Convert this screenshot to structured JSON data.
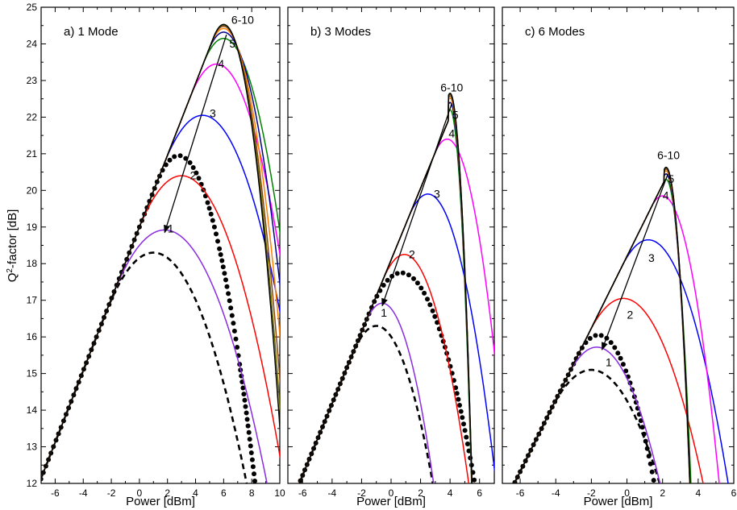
{
  "figure": {
    "ylabel_prefix": "Q",
    "ylabel_sup": "2",
    "ylabel_rest": "-factor [dB]"
  },
  "chart_data": [
    {
      "type": "line",
      "panel_label": "a)   1 Mode",
      "xlabel": "Power [dBm]",
      "xlim": [
        -7,
        10
      ],
      "ylim": [
        12,
        25
      ],
      "xticks": [
        -6,
        -4,
        -2,
        0,
        2,
        4,
        6,
        8,
        10
      ],
      "yticks": [
        12,
        13,
        14,
        15,
        16,
        17,
        18,
        19,
        20,
        21,
        22,
        23,
        24,
        25
      ],
      "grid": false,
      "linear_slope_db_per_db": 0.98,
      "linear_intercept_db": 19.0,
      "series": [
        {
          "label": "1",
          "color": "#8a2be2",
          "style": "solid",
          "peak_x": 1.8,
          "peak_y": 18.92
        },
        {
          "label": "2",
          "color": "#ff0000",
          "style": "solid",
          "peak_x": 3.0,
          "peak_y": 20.4
        },
        {
          "label": "3",
          "color": "#0000ff",
          "style": "solid",
          "peak_x": 4.5,
          "peak_y": 22.05
        },
        {
          "label": "4",
          "color": "#ff00ff",
          "style": "solid",
          "peak_x": 5.5,
          "peak_y": 23.45
        },
        {
          "label": "5",
          "color": "#008000",
          "style": "solid",
          "peak_x": 6.0,
          "peak_y": 24.15
        },
        {
          "label": "",
          "color": "#00008b",
          "style": "solid",
          "peak_x": 6.0,
          "peak_y": 24.32
        },
        {
          "label": "",
          "color": "#ff7f00",
          "style": "solid",
          "peak_x": 6.0,
          "peak_y": 24.42
        },
        {
          "label": "",
          "color": "#8b4513",
          "style": "solid",
          "peak_x": 6.0,
          "peak_y": 24.48
        },
        {
          "label": "",
          "color": "#6b6b00",
          "style": "solid",
          "peak_x": 6.0,
          "peak_y": 24.51
        },
        {
          "label": "",
          "color": "#000000",
          "style": "solid",
          "peak_x": 6.0,
          "peak_y": 24.53
        },
        {
          "label": "",
          "color": "#000000",
          "style": "dashed",
          "peak_x": 1.0,
          "peak_y": 18.3
        },
        {
          "label": "",
          "color": "#000000",
          "style": "dotted",
          "peak_x": 2.8,
          "peak_y": 20.95
        }
      ],
      "annotations": [
        {
          "text": "1",
          "x": 2.0,
          "y": 18.85
        },
        {
          "text": "2",
          "x": 3.6,
          "y": 20.3
        },
        {
          "text": "3",
          "x": 5.0,
          "y": 22.0
        },
        {
          "text": "4",
          "x": 5.6,
          "y": 23.35
        },
        {
          "text": "5",
          "x": 6.4,
          "y": 23.9
        },
        {
          "text": "6-10",
          "x": 6.55,
          "y": 24.55
        }
      ],
      "arrow": {
        "from_x": 6.2,
        "from_y": 24.25,
        "to_x": 1.8,
        "to_y": 18.85
      }
    },
    {
      "type": "line",
      "panel_label": "b)   3 Modes",
      "xlabel": "Power [dBm]",
      "xlim": [
        -7,
        7
      ],
      "ylim": [
        12,
        25
      ],
      "xticks": [
        -6,
        -4,
        -2,
        0,
        2,
        4,
        6
      ],
      "yticks": [
        12,
        13,
        14,
        15,
        16,
        17,
        18,
        19,
        20,
        21,
        22,
        23,
        24,
        25
      ],
      "grid": false,
      "linear_slope_db_per_db": 0.98,
      "linear_intercept_db": 18.1,
      "series": [
        {
          "label": "1",
          "color": "#8a2be2",
          "style": "solid",
          "peak_x": -0.6,
          "peak_y": 16.92
        },
        {
          "label": "2",
          "color": "#ff0000",
          "style": "solid",
          "peak_x": 0.9,
          "peak_y": 18.25
        },
        {
          "label": "3",
          "color": "#0000ff",
          "style": "solid",
          "peak_x": 2.5,
          "peak_y": 19.9
        },
        {
          "label": "4",
          "color": "#ff00ff",
          "style": "solid",
          "peak_x": 3.8,
          "peak_y": 21.4
        },
        {
          "label": "5",
          "color": "#008000",
          "style": "solid",
          "peak_x": 4.0,
          "peak_y": 22.2
        },
        {
          "label": "",
          "color": "#00008b",
          "style": "solid",
          "peak_x": 4.0,
          "peak_y": 22.4
        },
        {
          "label": "",
          "color": "#ff7f00",
          "style": "solid",
          "peak_x": 4.0,
          "peak_y": 22.52
        },
        {
          "label": "",
          "color": "#8b4513",
          "style": "solid",
          "peak_x": 4.0,
          "peak_y": 22.58
        },
        {
          "label": "",
          "color": "#6b6b00",
          "style": "solid",
          "peak_x": 4.0,
          "peak_y": 22.62
        },
        {
          "label": "",
          "color": "#000000",
          "style": "solid",
          "peak_x": 4.0,
          "peak_y": 22.65
        },
        {
          "label": "",
          "color": "#000000",
          "style": "dashed",
          "peak_x": -1.0,
          "peak_y": 16.3
        },
        {
          "label": "",
          "color": "#000000",
          "style": "dotted",
          "peak_x": 0.7,
          "peak_y": 17.75
        }
      ],
      "annotations": [
        {
          "text": "1",
          "x": -0.7,
          "y": 16.55
        },
        {
          "text": "2",
          "x": 1.2,
          "y": 18.15
        },
        {
          "text": "3",
          "x": 2.9,
          "y": 19.8
        },
        {
          "text": "4",
          "x": 3.9,
          "y": 21.45
        },
        {
          "text": "5",
          "x": 4.15,
          "y": 21.95
        },
        {
          "text": "6-10",
          "x": 3.35,
          "y": 22.7
        }
      ],
      "arrow": {
        "from_x": 4.1,
        "from_y": 22.35,
        "to_x": -0.6,
        "to_y": 16.85
      }
    },
    {
      "type": "line",
      "panel_label": "c)   6 Modes",
      "xlabel": "Power [dBm]",
      "xlim": [
        -7,
        6
      ],
      "ylim": [
        12,
        25
      ],
      "xticks": [
        -6,
        -4,
        -2,
        0,
        2,
        4,
        6
      ],
      "yticks": [
        12,
        13,
        14,
        15,
        16,
        17,
        18,
        19,
        20,
        21,
        22,
        23,
        24,
        25
      ],
      "grid": false,
      "linear_slope_db_per_db": 0.98,
      "linear_intercept_db": 18.2,
      "series": [
        {
          "label": "1",
          "color": "#8a2be2",
          "style": "solid",
          "peak_x": -1.7,
          "peak_y": 15.72
        },
        {
          "label": "2",
          "color": "#ff0000",
          "style": "solid",
          "peak_x": -0.2,
          "peak_y": 17.05
        },
        {
          "label": "3",
          "color": "#0000ff",
          "style": "solid",
          "peak_x": 1.2,
          "peak_y": 18.65
        },
        {
          "label": "4",
          "color": "#ff00ff",
          "style": "solid",
          "peak_x": 2.0,
          "peak_y": 19.85
        },
        {
          "label": "5",
          "color": "#008000",
          "style": "solid",
          "peak_x": 2.2,
          "peak_y": 20.3
        },
        {
          "label": "",
          "color": "#00008b",
          "style": "solid",
          "peak_x": 2.2,
          "peak_y": 20.45
        },
        {
          "label": "",
          "color": "#ff7f00",
          "style": "solid",
          "peak_x": 2.2,
          "peak_y": 20.53
        },
        {
          "label": "",
          "color": "#8b4513",
          "style": "solid",
          "peak_x": 2.2,
          "peak_y": 20.58
        },
        {
          "label": "",
          "color": "#6b6b00",
          "style": "solid",
          "peak_x": 2.2,
          "peak_y": 20.61
        },
        {
          "label": "",
          "color": "#000000",
          "style": "solid",
          "peak_x": 2.2,
          "peak_y": 20.63
        },
        {
          "label": "",
          "color": "#000000",
          "style": "dashed",
          "peak_x": -2.0,
          "peak_y": 15.1
        },
        {
          "label": "",
          "color": "#000000",
          "style": "dotted",
          "peak_x": -1.6,
          "peak_y": 16.05
        }
      ],
      "annotations": [
        {
          "text": "1",
          "x": -1.2,
          "y": 15.2
        },
        {
          "text": "2",
          "x": 0.0,
          "y": 16.5
        },
        {
          "text": "3",
          "x": 1.2,
          "y": 18.05
        },
        {
          "text": "4",
          "x": 2.0,
          "y": 19.75
        },
        {
          "text": "5",
          "x": 2.3,
          "y": 20.2
        },
        {
          "text": "6-10",
          "x": 1.7,
          "y": 20.85
        }
      ],
      "arrow": {
        "from_x": 2.3,
        "from_y": 20.45,
        "to_x": -1.4,
        "to_y": 15.65
      }
    }
  ]
}
